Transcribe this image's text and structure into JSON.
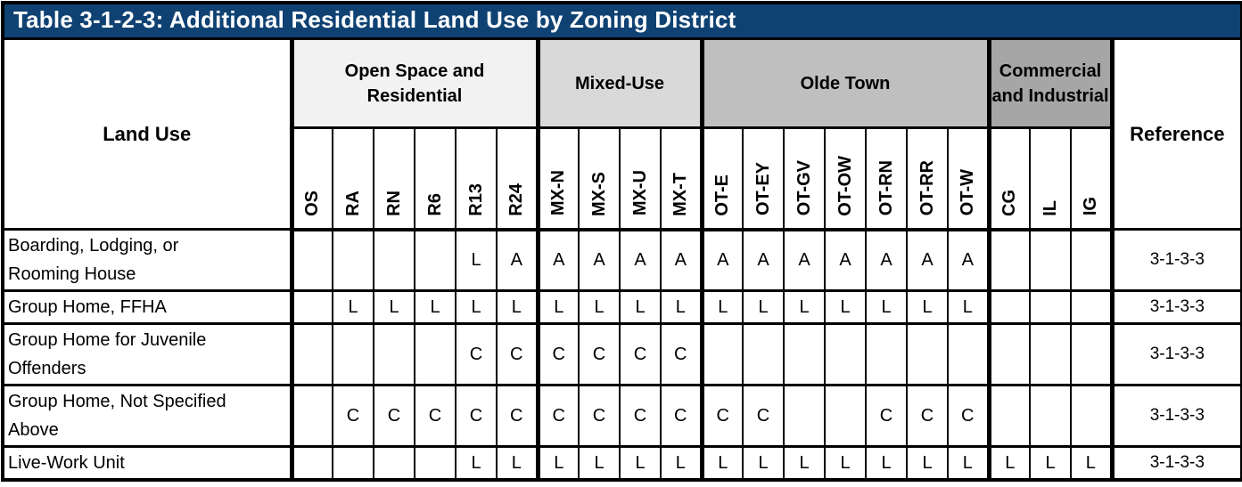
{
  "title": "Table 3-1-2-3:  Additional Residential Land Use by Zoning District",
  "colors": {
    "title_bg": "#0F4273",
    "title_text": "#FFFFFF",
    "border": "#000000",
    "body_bg": "#FFFFFF",
    "group_open_space_bg": "#F2F2F2",
    "group_mixed_use_bg": "#D9D9D9",
    "group_olde_town_bg": "#BFBFBF",
    "group_commercial_bg": "#A6A6A6"
  },
  "header": {
    "land_use_label": "Land Use",
    "reference_label": "Reference",
    "groups": [
      {
        "label": "Open Space and Residential",
        "color": "#F2F2F2",
        "zones": [
          "OS",
          "RA",
          "RN",
          "R6",
          "R13",
          "R24"
        ]
      },
      {
        "label": "Mixed-Use",
        "color": "#D9D9D9",
        "zones": [
          "MX-N",
          "MX-S",
          "MX-U",
          "MX-T"
        ]
      },
      {
        "label": "Olde Town",
        "color": "#BFBFBF",
        "zones": [
          "OT-E",
          "OT-EY",
          "OT-GV",
          "OT-OW",
          "OT-RN",
          "OT-RR",
          "OT-W"
        ]
      },
      {
        "label": "Commercial and Industrial",
        "color": "#A6A6A6",
        "zones": [
          "CG",
          "IL",
          "IG"
        ]
      }
    ]
  },
  "rows": [
    {
      "land_use": "Boarding, Lodging, or Rooming House",
      "values": [
        "",
        "",
        "",
        "",
        "L",
        "A",
        "A",
        "A",
        "A",
        "A",
        "A",
        "A",
        "A",
        "A",
        "A",
        "A",
        "A",
        "",
        "",
        ""
      ],
      "reference": "3-1-3-3"
    },
    {
      "land_use": "Group Home, FFHA",
      "values": [
        "",
        "L",
        "L",
        "L",
        "L",
        "L",
        "L",
        "L",
        "L",
        "L",
        "L",
        "L",
        "L",
        "L",
        "L",
        "L",
        "L",
        "",
        "",
        ""
      ],
      "reference": "3-1-3-3"
    },
    {
      "land_use": "Group Home for Juvenile Offenders",
      "values": [
        "",
        "",
        "",
        "",
        "C",
        "C",
        "C",
        "C",
        "C",
        "C",
        "",
        "",
        "",
        "",
        "",
        "",
        "",
        "",
        "",
        ""
      ],
      "reference": "3-1-3-3"
    },
    {
      "land_use": "Group Home, Not Specified Above",
      "values": [
        "",
        "C",
        "C",
        "C",
        "C",
        "C",
        "C",
        "C",
        "C",
        "C",
        "C",
        "C",
        "",
        "",
        "C",
        "C",
        "C",
        "",
        "",
        ""
      ],
      "reference": "3-1-3-3"
    },
    {
      "land_use": "Live-Work Unit",
      "values": [
        "",
        "",
        "",
        "",
        "L",
        "L",
        "L",
        "L",
        "L",
        "L",
        "L",
        "L",
        "L",
        "L",
        "L",
        "L",
        "L",
        "L",
        "L",
        "L"
      ],
      "reference": "3-1-3-3"
    }
  ]
}
